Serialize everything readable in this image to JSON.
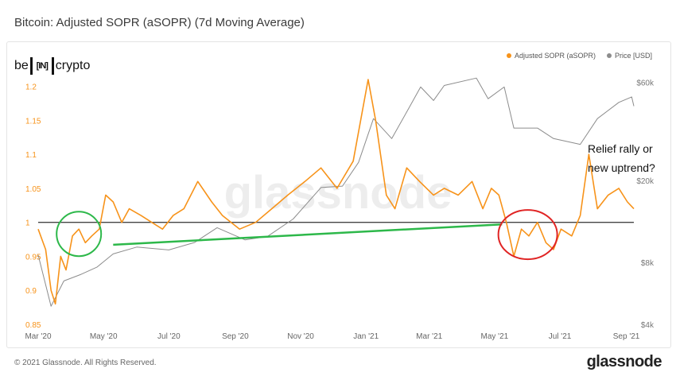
{
  "title": "Bitcoin: Adjusted SOPR (aSOPR) (7d Moving Average)",
  "logo": {
    "left": "be",
    "middle": "[IN]",
    "right": "crypto"
  },
  "watermark": "glassnode",
  "footer": {
    "copyright": "© 2021 Glassnode. All Rights Reserved.",
    "brand": "glassnode"
  },
  "annotation": {
    "line1": "Relief rally or",
    "line2": "new uptrend?"
  },
  "colors": {
    "sopr": "#f7931a",
    "price": "#8c8c8c",
    "baseline": "#444444",
    "trend": "#2db84a",
    "circle_green": "#2db84a",
    "circle_red": "#e02424"
  },
  "chart_data": {
    "type": "line",
    "legend": [
      "Adjusted SOPR (aSOPR)",
      "Price [USD]"
    ],
    "x_ticks": [
      "Mar '20",
      "May '20",
      "Jul '20",
      "Sep '20",
      "Nov '20",
      "Jan '21",
      "Mar '21",
      "May '21",
      "Jul '21",
      "Sep '21"
    ],
    "x_range": [
      "2020-03-01",
      "2021-09-08"
    ],
    "y_left": {
      "ticks": [
        "0.85",
        "0.9",
        "0.95",
        "1",
        "1.05",
        "1.1",
        "1.15",
        "1.2"
      ],
      "range": [
        0.85,
        1.21
      ]
    },
    "y_right": {
      "ticks": [
        "$4k",
        "$8k",
        "$20k",
        "$60k"
      ],
      "scale": "log",
      "range": [
        4000,
        62000
      ]
    },
    "baseline": 1.0,
    "series": [
      {
        "name": "Adjusted SOPR (aSOPR)",
        "axis": "left",
        "points": [
          [
            "2020-03-01",
            0.99
          ],
          [
            "2020-03-08",
            0.96
          ],
          [
            "2020-03-13",
            0.9
          ],
          [
            "2020-03-17",
            0.88
          ],
          [
            "2020-03-22",
            0.95
          ],
          [
            "2020-03-27",
            0.93
          ],
          [
            "2020-04-02",
            0.98
          ],
          [
            "2020-04-08",
            0.99
          ],
          [
            "2020-04-14",
            0.97
          ],
          [
            "2020-04-20",
            0.98
          ],
          [
            "2020-04-27",
            0.99
          ],
          [
            "2020-05-03",
            1.04
          ],
          [
            "2020-05-10",
            1.03
          ],
          [
            "2020-05-18",
            1.0
          ],
          [
            "2020-05-25",
            1.02
          ],
          [
            "2020-06-05",
            1.01
          ],
          [
            "2020-06-15",
            1.0
          ],
          [
            "2020-06-25",
            0.99
          ],
          [
            "2020-07-05",
            1.01
          ],
          [
            "2020-07-15",
            1.02
          ],
          [
            "2020-07-28",
            1.06
          ],
          [
            "2020-08-10",
            1.03
          ],
          [
            "2020-08-20",
            1.01
          ],
          [
            "2020-09-05",
            0.99
          ],
          [
            "2020-09-20",
            1.0
          ],
          [
            "2020-10-05",
            1.02
          ],
          [
            "2020-10-20",
            1.04
          ],
          [
            "2020-11-05",
            1.06
          ],
          [
            "2020-11-20",
            1.08
          ],
          [
            "2020-12-05",
            1.05
          ],
          [
            "2020-12-20",
            1.09
          ],
          [
            "2021-01-03",
            1.21
          ],
          [
            "2021-01-10",
            1.15
          ],
          [
            "2021-01-20",
            1.04
          ],
          [
            "2021-01-28",
            1.02
          ],
          [
            "2021-02-08",
            1.08
          ],
          [
            "2021-02-20",
            1.06
          ],
          [
            "2021-03-05",
            1.04
          ],
          [
            "2021-03-15",
            1.05
          ],
          [
            "2021-03-28",
            1.04
          ],
          [
            "2021-04-10",
            1.06
          ],
          [
            "2021-04-20",
            1.02
          ],
          [
            "2021-04-28",
            1.05
          ],
          [
            "2021-05-05",
            1.04
          ],
          [
            "2021-05-12",
            1.0
          ],
          [
            "2021-05-19",
            0.95
          ],
          [
            "2021-05-26",
            0.99
          ],
          [
            "2021-06-02",
            0.98
          ],
          [
            "2021-06-10",
            1.0
          ],
          [
            "2021-06-18",
            0.97
          ],
          [
            "2021-06-25",
            0.96
          ],
          [
            "2021-07-02",
            0.99
          ],
          [
            "2021-07-12",
            0.98
          ],
          [
            "2021-07-20",
            1.01
          ],
          [
            "2021-07-28",
            1.1
          ],
          [
            "2021-08-05",
            1.02
          ],
          [
            "2021-08-15",
            1.04
          ],
          [
            "2021-08-25",
            1.05
          ],
          [
            "2021-09-02",
            1.03
          ],
          [
            "2021-09-08",
            1.02
          ]
        ]
      },
      {
        "name": "Price [USD]",
        "axis": "right",
        "points": [
          [
            "2020-03-01",
            8700
          ],
          [
            "2020-03-13",
            4900
          ],
          [
            "2020-03-25",
            6500
          ],
          [
            "2020-04-10",
            7000
          ],
          [
            "2020-04-25",
            7600
          ],
          [
            "2020-05-10",
            8800
          ],
          [
            "2020-06-01",
            9500
          ],
          [
            "2020-07-01",
            9200
          ],
          [
            "2020-07-25",
            10000
          ],
          [
            "2020-08-15",
            11800
          ],
          [
            "2020-09-10",
            10300
          ],
          [
            "2020-10-01",
            10700
          ],
          [
            "2020-10-25",
            13000
          ],
          [
            "2020-11-20",
            18500
          ],
          [
            "2020-12-10",
            18800
          ],
          [
            "2020-12-25",
            24500
          ],
          [
            "2021-01-08",
            40000
          ],
          [
            "2021-01-25",
            32000
          ],
          [
            "2021-02-10",
            45000
          ],
          [
            "2021-02-21",
            57000
          ],
          [
            "2021-03-05",
            49000
          ],
          [
            "2021-03-15",
            58000
          ],
          [
            "2021-04-14",
            63000
          ],
          [
            "2021-04-25",
            50000
          ],
          [
            "2021-05-10",
            57000
          ],
          [
            "2021-05-19",
            36000
          ],
          [
            "2021-06-10",
            36000
          ],
          [
            "2021-06-25",
            32000
          ],
          [
            "2021-07-20",
            30000
          ],
          [
            "2021-08-05",
            40000
          ],
          [
            "2021-08-25",
            48000
          ],
          [
            "2021-09-06",
            51000
          ],
          [
            "2021-09-08",
            46000
          ]
        ]
      }
    ],
    "overlays": {
      "trend_line": {
        "from": [
          "2020-05-10",
          0.967
        ],
        "to": [
          "2021-05-08",
          0.997
        ]
      },
      "green_circle": {
        "center": [
          "2020-04-08",
          0.983
        ]
      },
      "red_circle": {
        "center": [
          "2021-06-01",
          0.982
        ]
      }
    }
  }
}
